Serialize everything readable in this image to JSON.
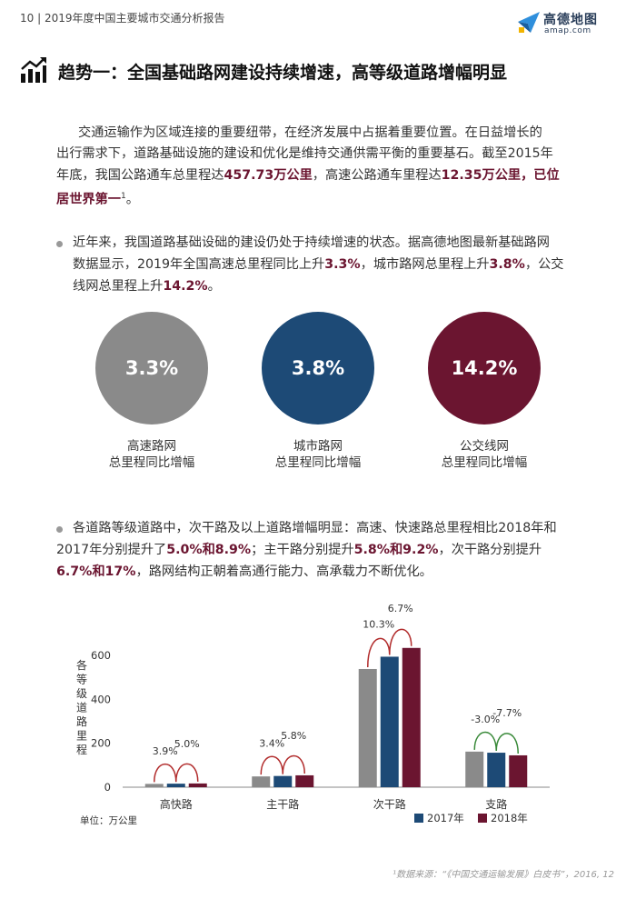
{
  "header": {
    "text": "10 | 2019年度中国主要城市交通分析报告"
  },
  "logo": {
    "name": "高德地图",
    "url": "amap.com"
  },
  "title": {
    "icon": "trend-chart-icon",
    "text": "趋势一：全国基础路网建设持续增速，高等级道路增幅明显"
  },
  "intro": {
    "p1": "交通运输作为区域连接的重要纽带，在经济发展中占据着重要位置。在日益增长的",
    "p2": "出行需求下，道路基础设施的建设和优化是维持交通供需平衡的重要基石。截至2015年",
    "p3a": "年底，我国公路通车总里程达",
    "p3b": "457.73万公里",
    "p3c": "，高速公路通车里程达",
    "p3d": "12.35万公里，已位",
    "p4a": "居世界第一",
    "p4b": "1",
    "p4c": "。"
  },
  "bullet1": {
    "l1": "近年来，我国道路基础设础的建设仍处于持续增速的状态。据高德地图最新基础路网",
    "l2a": "数据显示，2019年全国高速总里程同比上升",
    "l2b": "3.3%",
    "l2c": "，城市路网总里程上升",
    "l2d": "3.8%",
    "l2e": "，公交",
    "l3a": "线网总里程上升",
    "l3b": "14.2%",
    "l3c": "。"
  },
  "circles": [
    {
      "value": "3.3%",
      "label1": "高速路网",
      "label2": "总里程同比增幅",
      "color": "#8a8a8a"
    },
    {
      "value": "3.8%",
      "label1": "城市路网",
      "label2": "总里程同比增幅",
      "color": "#1d4a76"
    },
    {
      "value": "14.2%",
      "label1": "公交线网",
      "label2": "总里程同比增幅",
      "color": "#6b1530"
    }
  ],
  "bullet2": {
    "l1": "各道路等级道路中，次干路及以上道路增幅明显：高速、快速路总里程相比2018年和",
    "l2a": "2017年分别提升了",
    "l2b": "5.0%和8.9%",
    "l2c": "；主干路分别提升",
    "l2d": "5.8%和9.2%",
    "l2e": "，次干路分别提升",
    "l3a": "6.7%和17%",
    "l3b": "，路网结构正朝着高通行能力、高承载力不断优化。"
  },
  "chart_data": {
    "type": "bar",
    "ylabel": "各等级道路里程",
    "unit": "单位：万公里",
    "categories": [
      "高快路",
      "主干路",
      "次干路",
      "支路"
    ],
    "ylim": [
      0,
      650
    ],
    "yticks": [
      0,
      200,
      400,
      600
    ],
    "grid": false,
    "legend_position": "bottom-right",
    "series": [
      {
        "name": "",
        "color": "#8a8a8a",
        "values": [
          15,
          49,
          538,
          162
        ]
      },
      {
        "name": "2017年",
        "color": "#1d4a76",
        "values": [
          16,
          51,
          594,
          157
        ]
      },
      {
        "name": "2018年",
        "color": "#6b1530",
        "values": [
          17,
          54,
          634,
          145
        ]
      }
    ],
    "annotations": [
      [
        "3.9%",
        "5.0%"
      ],
      [
        "3.4%",
        "5.8%"
      ],
      [
        "10.3%",
        "6.7%"
      ],
      [
        "-3.0%",
        "-7.7%"
      ]
    ],
    "annotation_colors": {
      "positive": "#b22d2d",
      "negative": "#3a8a3a"
    }
  },
  "footer": {
    "text": "¹数据来源：“《中国交通运输发展》白皮书”，2016, 12"
  }
}
